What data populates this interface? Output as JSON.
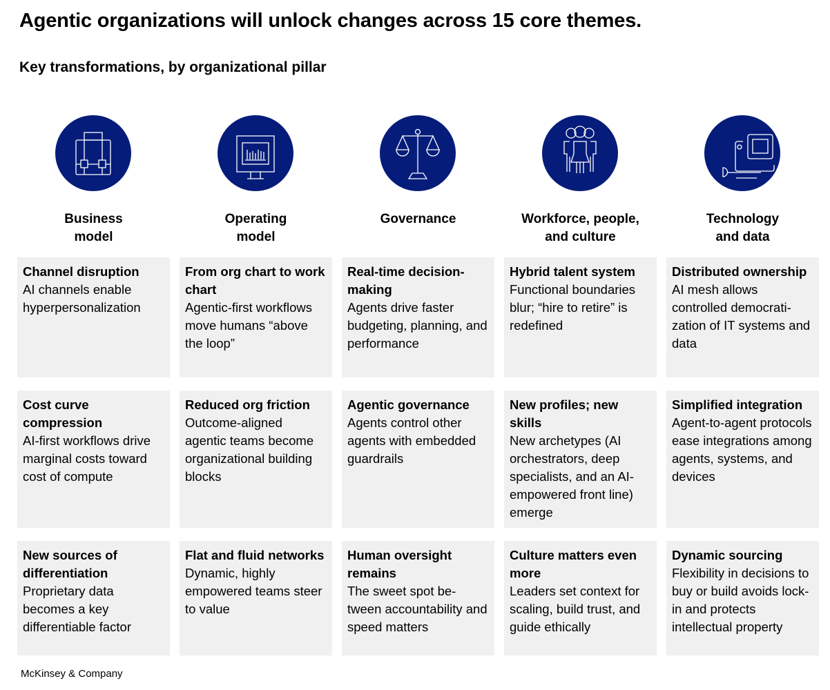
{
  "title": "Agentic organizations will unlock changes across 15 core themes.",
  "subtitle": "Key transformations, by organizational pillar",
  "colors": {
    "circle": "#051c7a",
    "card": "#f0f0f0"
  },
  "pillars": [
    {
      "label": "Business\nmodel",
      "icon": "briefcase-icon",
      "cards": [
        {
          "heading": "Channel disruption",
          "body": "AI channels enable hyperpersonalization"
        },
        {
          "heading": "Cost curve compression",
          "body": "AI-first workflows drive marginal costs toward cost of compute"
        },
        {
          "heading": "New sources of differentiation",
          "body": "Proprietary data becomes a key differentiable factor"
        }
      ]
    },
    {
      "label": "Operating\nmodel",
      "icon": "monitor-chart-icon",
      "cards": [
        {
          "heading": "From org chart to work chart",
          "body": "Agentic-first workflows move humans “above the loop”"
        },
        {
          "heading": "Reduced org friction",
          "body": "Outcome-aligned agentic teams become organizational building blocks"
        },
        {
          "heading": "Flat and fluid networks",
          "body": "Dynamic, highly empowered teams steer to value"
        }
      ]
    },
    {
      "label": "Governance",
      "icon": "scales-icon",
      "cards": [
        {
          "heading": "Real-time decision-making",
          "body": "Agents drive faster budgeting, planning, and performance"
        },
        {
          "heading": "Agentic governance",
          "body": "Agents control other agents with embedded guardrails"
        },
        {
          "heading": "Human oversight remains",
          "body": "The sweet spot be-tween accountability and speed matters"
        }
      ]
    },
    {
      "label": "Workforce, people,\nand culture",
      "icon": "people-icon",
      "cards": [
        {
          "heading": "Hybrid talent system",
          "body": "Functional boundaries blur; “hire to retire” is redefined"
        },
        {
          "heading": "New profiles; new skills",
          "body": "New archetypes (AI orchestrators, deep specialists, and an AI-empowered front line) emerge"
        },
        {
          "heading": "Culture matters even more",
          "body": "Leaders set context for scaling, build trust, and guide ethically"
        }
      ]
    },
    {
      "label": "Technology\nand data",
      "icon": "device-icon",
      "cards": [
        {
          "heading": "Distributed ownership",
          "body": "AI mesh allows controlled democrati-zation of IT systems and data"
        },
        {
          "heading": "Simplified integration",
          "body": "Agent-to-agent protocols ease integrations among agents, systems, and devices"
        },
        {
          "heading": "Dynamic sourcing",
          "body": "Flexibility in decisions to buy or build avoids lock-in and protects intellectual property"
        }
      ]
    }
  ],
  "footer": "McKinsey & Company"
}
